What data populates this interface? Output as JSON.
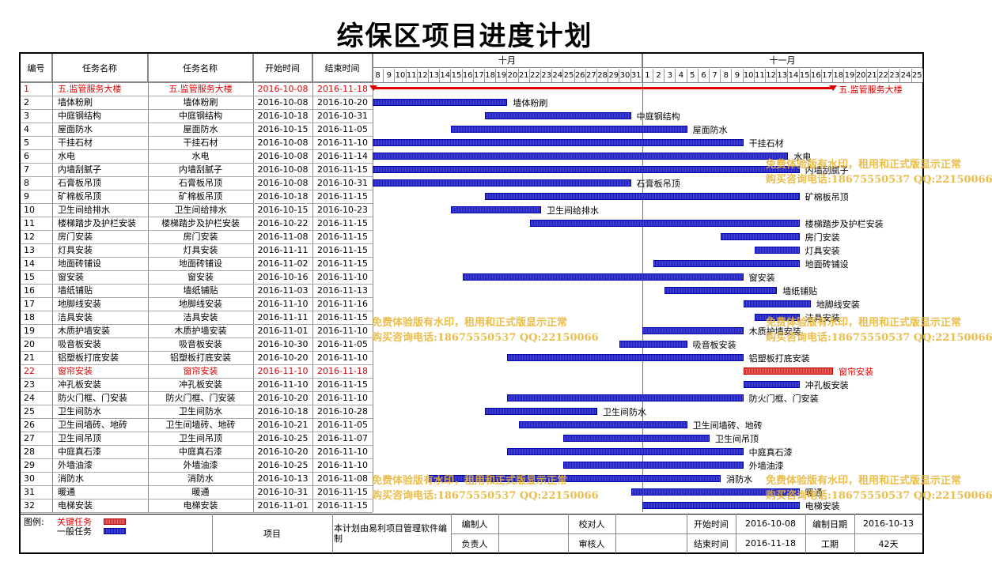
{
  "title": "综保区项目进度计划",
  "headers": {
    "no": "编号",
    "name1": "任务名称",
    "name2": "任务名称",
    "start": "开始时间",
    "end": "结束时间"
  },
  "months": [
    "十月",
    "十一月"
  ],
  "days": [
    "8",
    "9",
    "10",
    "11",
    "12",
    "13",
    "14",
    "15",
    "16",
    "17",
    "18",
    "19",
    "20",
    "21",
    "22",
    "23",
    "24",
    "25",
    "26",
    "27",
    "28",
    "29",
    "30",
    "31",
    "1",
    "2",
    "3",
    "4",
    "5",
    "6",
    "7",
    "8",
    "9",
    "10",
    "11",
    "12",
    "13",
    "14",
    "15",
    "16",
    "17",
    "18",
    "19",
    "20",
    "21",
    "22",
    "23",
    "24",
    "25"
  ],
  "colors": {
    "general_bar": "#2a2ac0",
    "critical_bar": "#e05050",
    "critical_text": "#e00000",
    "watermark": "#e8b63a"
  },
  "chart_data": {
    "type": "gantt",
    "x_range": [
      "2016-10-08",
      "2016-11-25"
    ],
    "tasks": [
      {
        "no": "1",
        "name": "五.监管服务大楼",
        "start": "2016-10-08",
        "end": "2016-11-18",
        "kind": "summary"
      },
      {
        "no": "2",
        "name": "墙体粉刷",
        "start": "2016-10-08",
        "end": "2016-10-20",
        "kind": "general"
      },
      {
        "no": "3",
        "name": "中庭钢结构",
        "start": "2016-10-18",
        "end": "2016-10-31",
        "kind": "general"
      },
      {
        "no": "4",
        "name": "屋面防水",
        "start": "2016-10-15",
        "end": "2016-11-05",
        "kind": "general"
      },
      {
        "no": "5",
        "name": "干挂石材",
        "start": "2016-10-08",
        "end": "2016-11-10",
        "kind": "general"
      },
      {
        "no": "6",
        "name": "水电",
        "start": "2016-10-08",
        "end": "2016-11-14",
        "kind": "general"
      },
      {
        "no": "7",
        "name": "内墙刮腻子",
        "start": "2016-10-08",
        "end": "2016-11-15",
        "kind": "general"
      },
      {
        "no": "8",
        "name": "石膏板吊顶",
        "start": "2016-10-08",
        "end": "2016-10-31",
        "kind": "general"
      },
      {
        "no": "9",
        "name": "矿棉板吊顶",
        "start": "2016-10-18",
        "end": "2016-11-15",
        "kind": "general"
      },
      {
        "no": "10",
        "name": "卫生间给排水",
        "start": "2016-10-15",
        "end": "2016-10-23",
        "kind": "general"
      },
      {
        "no": "11",
        "name": "楼梯踏步及护栏安装",
        "start": "2016-10-22",
        "end": "2016-11-15",
        "kind": "general"
      },
      {
        "no": "12",
        "name": "房门安装",
        "start": "2016-11-08",
        "end": "2016-11-15",
        "kind": "general"
      },
      {
        "no": "13",
        "name": "灯具安装",
        "start": "2016-11-11",
        "end": "2016-11-15",
        "kind": "general"
      },
      {
        "no": "14",
        "name": "地面砖铺设",
        "start": "2016-11-02",
        "end": "2016-11-15",
        "kind": "general"
      },
      {
        "no": "15",
        "name": "窗安装",
        "start": "2016-10-16",
        "end": "2016-11-10",
        "kind": "general"
      },
      {
        "no": "16",
        "name": "墙纸铺贴",
        "start": "2016-11-03",
        "end": "2016-11-13",
        "kind": "general"
      },
      {
        "no": "17",
        "name": "地脚线安装",
        "start": "2016-11-10",
        "end": "2016-11-16",
        "kind": "general"
      },
      {
        "no": "18",
        "name": "洁具安装",
        "start": "2016-11-11",
        "end": "2016-11-15",
        "kind": "general"
      },
      {
        "no": "19",
        "name": "木质护墙安装",
        "start": "2016-11-01",
        "end": "2016-11-10",
        "kind": "general"
      },
      {
        "no": "20",
        "name": "吸音板安装",
        "start": "2016-10-30",
        "end": "2016-11-05",
        "kind": "general"
      },
      {
        "no": "21",
        "name": "铝塑板打底安装",
        "start": "2016-10-20",
        "end": "2016-11-10",
        "kind": "general"
      },
      {
        "no": "22",
        "name": "窗帘安装",
        "start": "2016-11-10",
        "end": "2016-11-18",
        "kind": "critical"
      },
      {
        "no": "23",
        "name": "冲孔板安装",
        "start": "2016-11-10",
        "end": "2016-11-15",
        "kind": "general"
      },
      {
        "no": "24",
        "name": "防火门框、门安装",
        "start": "2016-10-20",
        "end": "2016-11-10",
        "kind": "general"
      },
      {
        "no": "25",
        "name": "卫生间防水",
        "start": "2016-10-18",
        "end": "2016-10-28",
        "kind": "general"
      },
      {
        "no": "26",
        "name": "卫生间墙砖、地砖",
        "start": "2016-10-21",
        "end": "2016-11-05",
        "kind": "general"
      },
      {
        "no": "27",
        "name": "卫生间吊顶",
        "start": "2016-10-25",
        "end": "2016-11-07",
        "kind": "general"
      },
      {
        "no": "28",
        "name": "中庭真石漆",
        "start": "2016-10-20",
        "end": "2016-11-10",
        "kind": "general"
      },
      {
        "no": "29",
        "name": "外墙油漆",
        "start": "2016-10-25",
        "end": "2016-11-10",
        "kind": "general"
      },
      {
        "no": "30",
        "name": "消防水",
        "start": "2016-10-13",
        "end": "2016-11-08",
        "kind": "general"
      },
      {
        "no": "31",
        "name": "暖通",
        "start": "2016-10-31",
        "end": "2016-11-15",
        "kind": "general"
      },
      {
        "no": "32",
        "name": "电梯安装",
        "start": "2016-11-01",
        "end": "2016-11-15",
        "kind": "general"
      }
    ]
  },
  "watermark": {
    "line1": "免费体验版有水印，租用和正式版显示正常",
    "line2": "购买咨询电话:18675550537 QQ:22150066"
  },
  "footer": {
    "legend_label": "图例:",
    "legend_critical": "关键任务",
    "legend_general": "一般任务",
    "project_label": "项目",
    "software_note": "本计划由易利项目管理软件编制",
    "editor_label": "编制人",
    "owner_label": "负责人",
    "checker_label": "校对人",
    "auditor_label": "审核人",
    "start_label": "开始时间",
    "start_value": "2016-10-08",
    "end_label": "结束时间",
    "end_value": "2016-11-18",
    "edit_date_label": "编制日期",
    "edit_date_value": "2016-10-13",
    "duration_label": "工期",
    "duration_value": "42天"
  }
}
